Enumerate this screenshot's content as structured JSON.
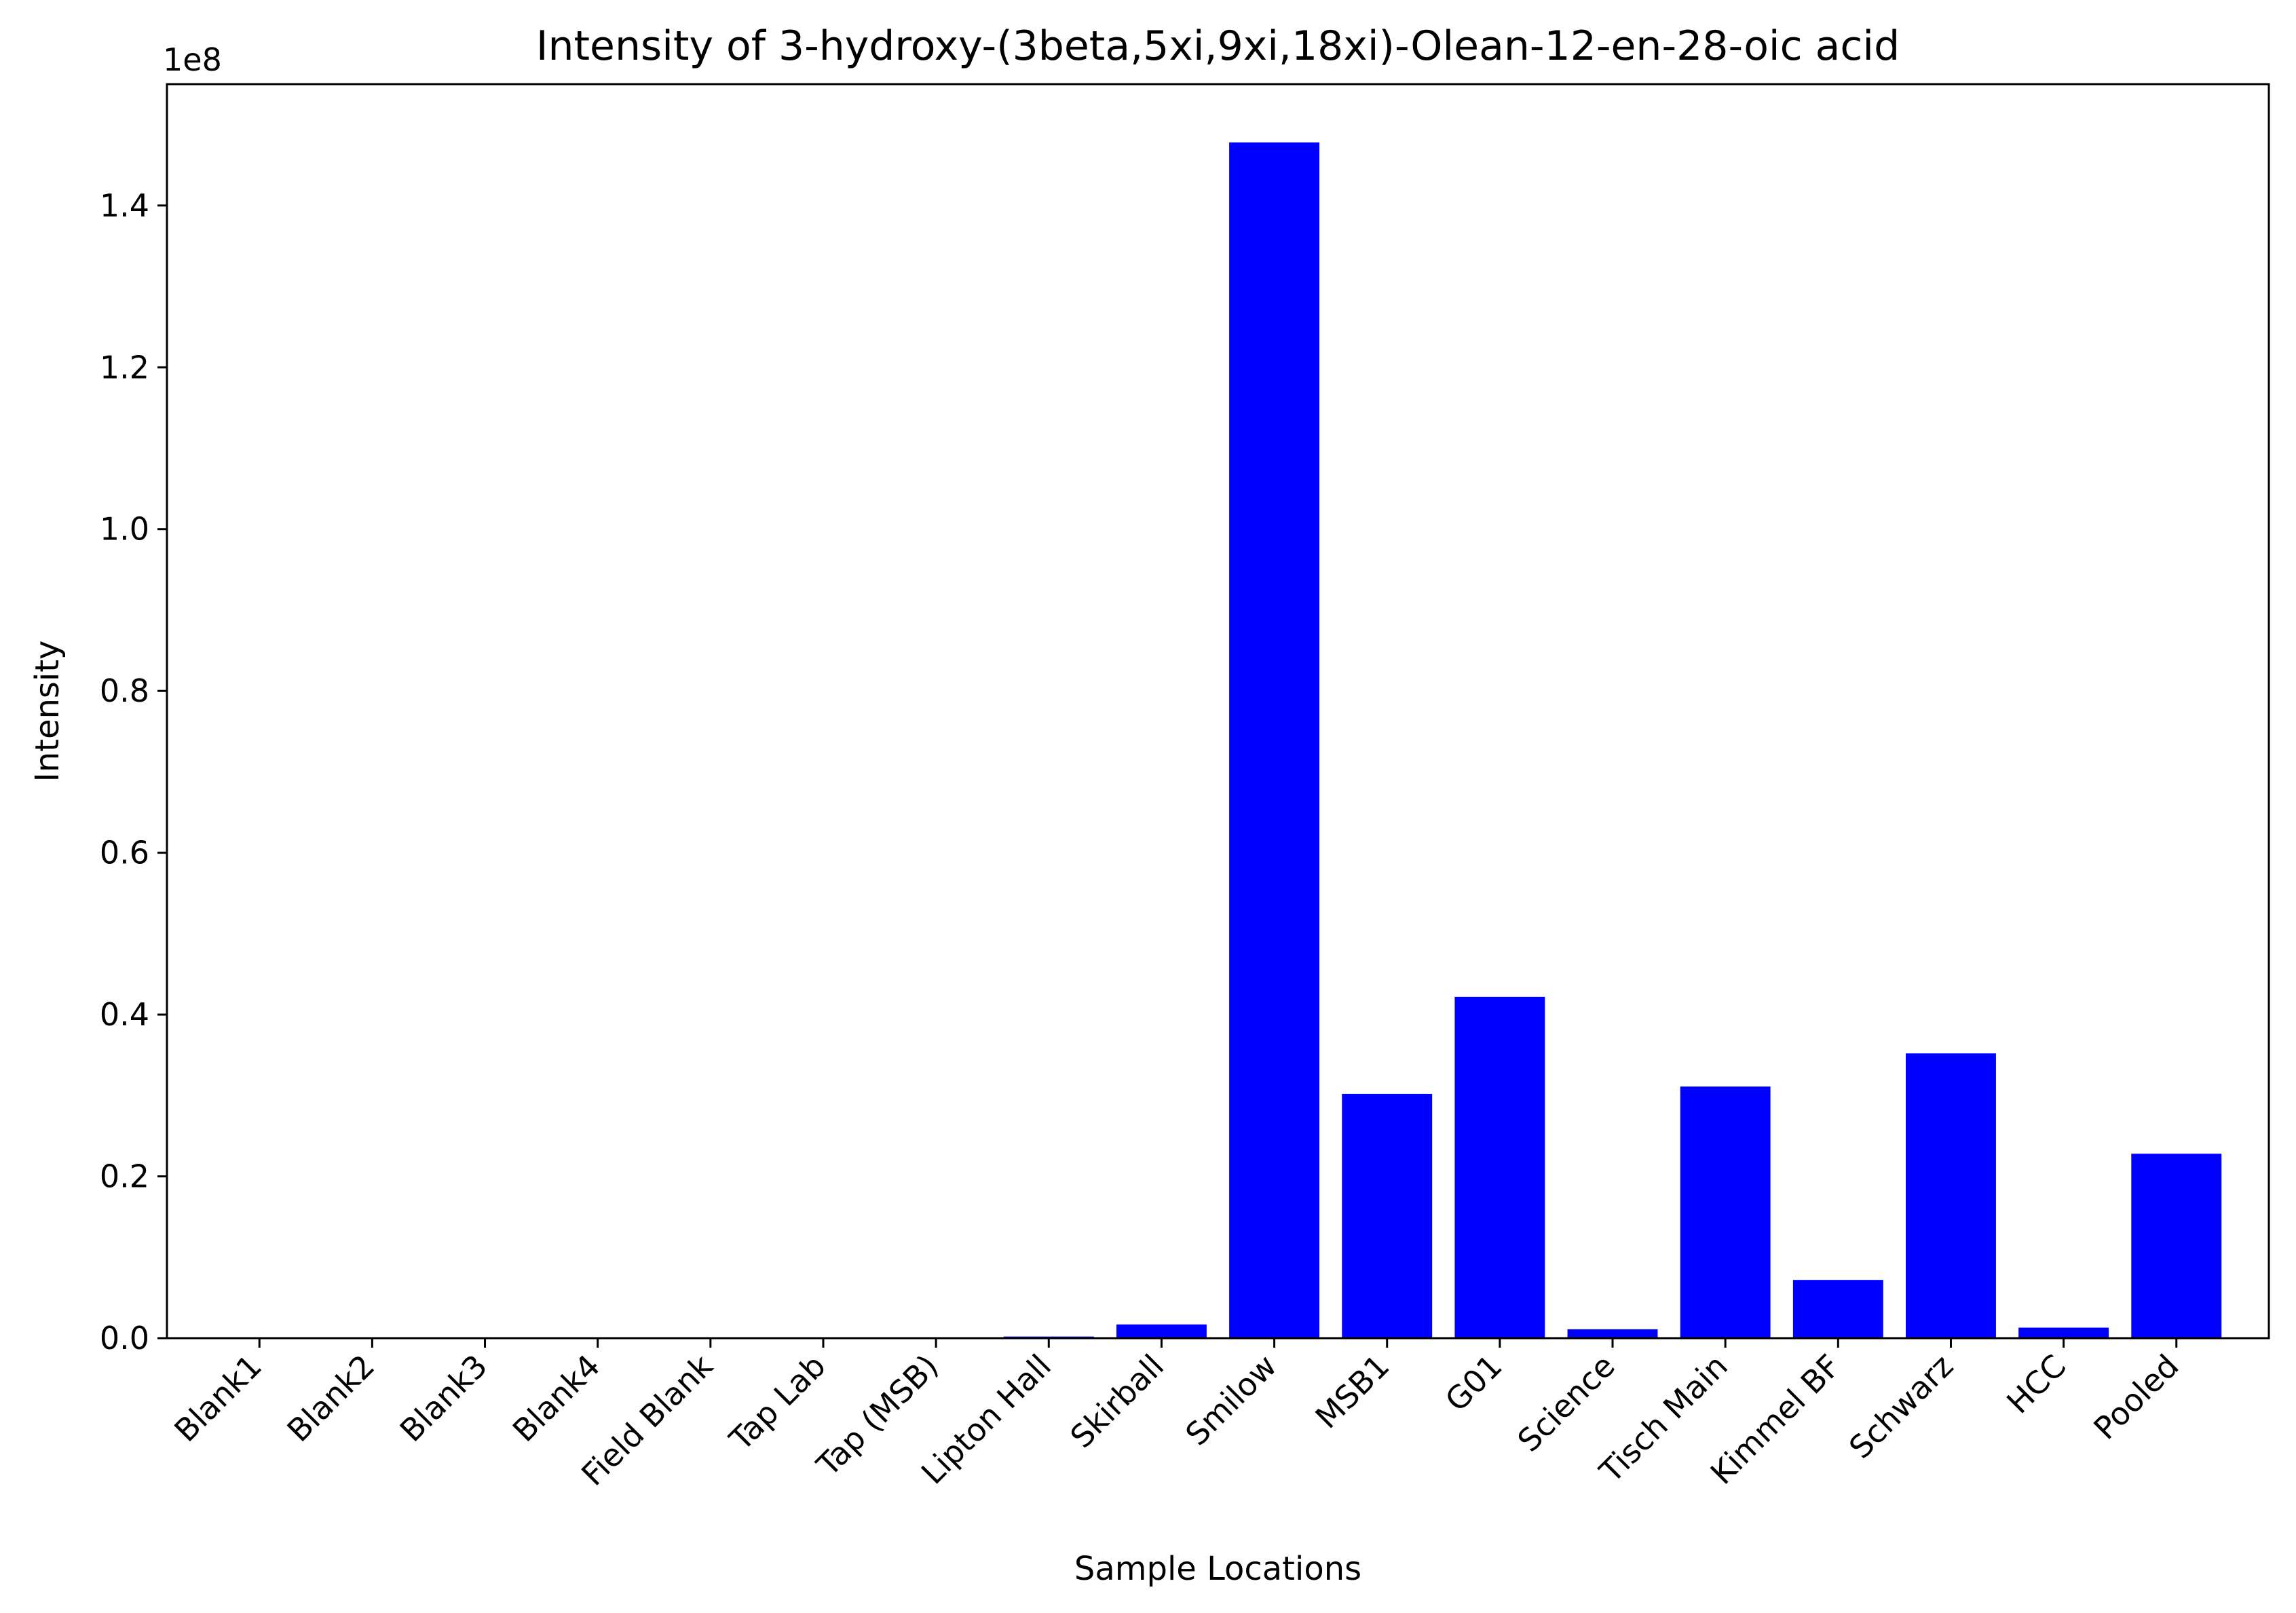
{
  "chart_data": {
    "type": "bar",
    "title": "Intensity of 3-hydroxy-(3beta,5xi,9xi,18xi)-Olean-12-en-28-oic acid",
    "xlabel": "Sample Locations",
    "ylabel": "Intensity",
    "y_offset_label": "1e8",
    "ylim": [
      0,
      1.55
    ],
    "yticks": [
      0.0,
      0.2,
      0.4,
      0.6,
      0.8,
      1.0,
      1.2,
      1.4
    ],
    "ytick_labels": [
      "0.0",
      "0.2",
      "0.4",
      "0.6",
      "0.8",
      "1.0",
      "1.2",
      "1.4"
    ],
    "grid": false,
    "bar_color": "#0000ff",
    "categories": [
      "Blank1",
      "Blank2",
      "Blank3",
      "Blank4",
      "Field Blank",
      "Tap Lab",
      "Tap (MSB)",
      "Lipton Hall",
      "Skirball",
      "Smilow",
      "MSB1",
      "G01",
      "Science",
      "Tisch Main",
      "Kimmel BF",
      "Schwarz",
      "HCC",
      "Pooled"
    ],
    "values": [
      0.0,
      0.0,
      0.0,
      0.0,
      0.0,
      0.0,
      0.0,
      0.002,
      0.017,
      1.478,
      0.302,
      0.422,
      0.011,
      0.311,
      0.072,
      0.352,
      0.013,
      0.228
    ]
  }
}
